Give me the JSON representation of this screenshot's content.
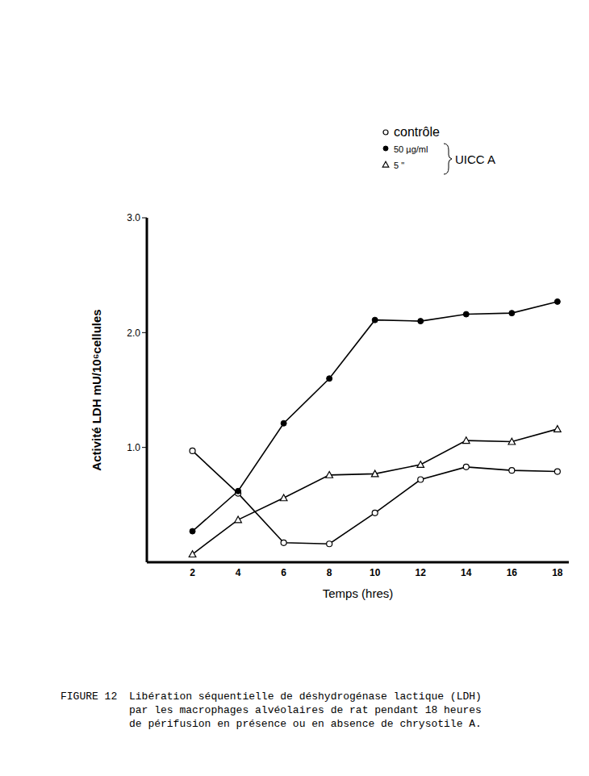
{
  "chart_data": {
    "type": "line",
    "x_label": "Temps (hres)",
    "y_label": "Activité LDH mU/10⁶cellules",
    "x": [
      2,
      4,
      6,
      8,
      10,
      12,
      14,
      16,
      18
    ],
    "series": [
      {
        "name": "contrôle",
        "color": "#000000",
        "marker": "circle-open",
        "values": [
          0.97,
          0.6,
          0.17,
          0.16,
          0.43,
          0.72,
          0.83,
          0.8,
          0.79
        ]
      },
      {
        "name": "50 µg/ml",
        "color": "#000000",
        "marker": "circle",
        "values": [
          0.27,
          0.62,
          1.21,
          1.6,
          2.11,
          2.1,
          2.16,
          2.17,
          2.27
        ]
      },
      {
        "name": "5 \"",
        "color": "#000000",
        "marker": "triangle-open",
        "values": [
          0.07,
          0.37,
          0.56,
          0.76,
          0.77,
          0.85,
          1.06,
          1.05,
          1.16
        ]
      }
    ],
    "xlim": [
      0,
      18.5
    ],
    "xticks": [
      2,
      4,
      6,
      8,
      10,
      12,
      14,
      16,
      18
    ],
    "ylim": [
      0,
      3
    ],
    "yticks": [
      {
        "value": 1,
        "label": "1.0"
      },
      {
        "value": 2,
        "label": "2.0"
      },
      {
        "value": 3,
        "label": "3.0"
      }
    ],
    "grid": false,
    "legend": "top-right",
    "annotation": "UICC A",
    "figure_label": "FIGURE 12",
    "caption": "Libération séquentielle de déshydrogénase lactique (LDH) par les macrophages alvéolaires de rat pendant 18 heures de périfusion en présence ou en absence de chrysotile A."
  }
}
